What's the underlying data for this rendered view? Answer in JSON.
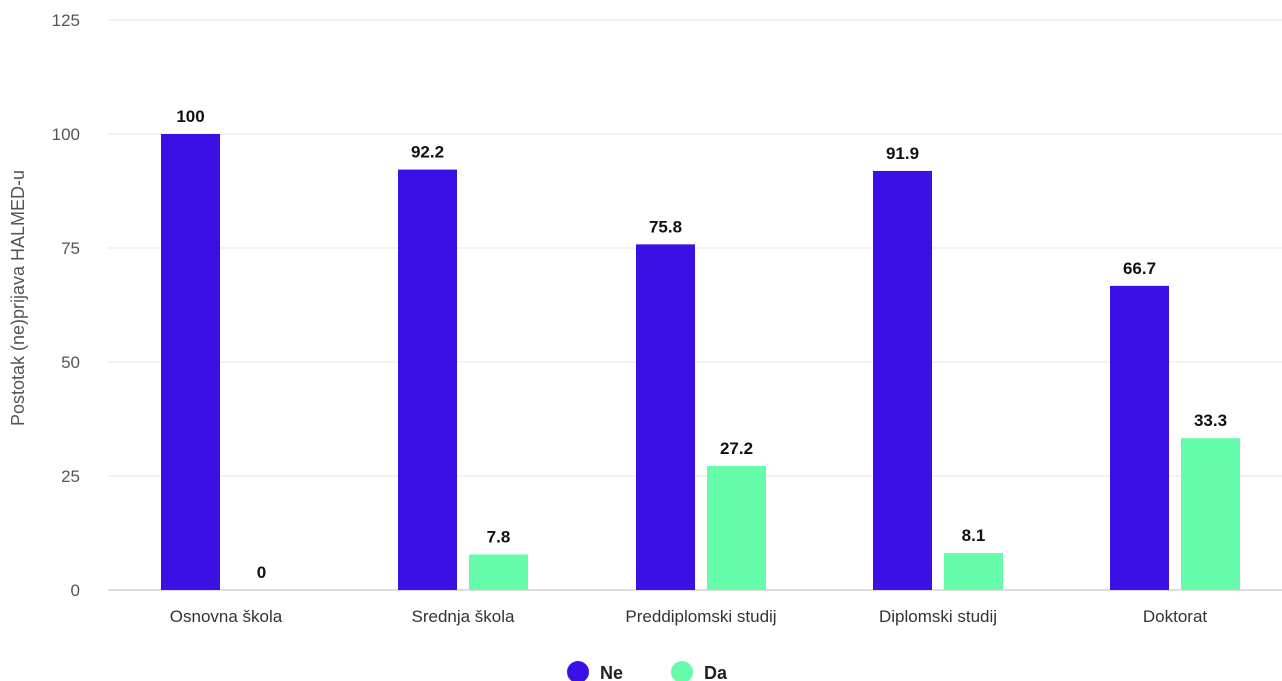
{
  "chart_data": {
    "type": "bar",
    "categories": [
      "Osnovna škola",
      "Srednja škola",
      "Preddiplomski studij",
      "Diplomski studij",
      "Doktorat"
    ],
    "series": [
      {
        "name": "Ne",
        "color": "#3a10e5",
        "values": [
          100,
          92.2,
          75.8,
          91.9,
          66.7
        ],
        "labels": [
          "100",
          "92.2",
          "75.8",
          "91.9",
          "66.7"
        ]
      },
      {
        "name": "Da",
        "color": "#67fcac",
        "values": [
          0,
          7.8,
          27.2,
          8.1,
          33.3
        ],
        "labels": [
          "0",
          "7.8",
          "27.2",
          "8.1",
          "33.3"
        ]
      }
    ],
    "ylabel": "Postotak (ne)prijava HALMED-u",
    "xlabel": "",
    "ylim": [
      0,
      125
    ],
    "yticks": [
      0,
      25,
      50,
      75,
      100,
      125
    ],
    "grid": true,
    "legend_position": "bottom-center",
    "gridline_color": "#e6e6e6",
    "axis_line_color": "#bdbdbd"
  }
}
